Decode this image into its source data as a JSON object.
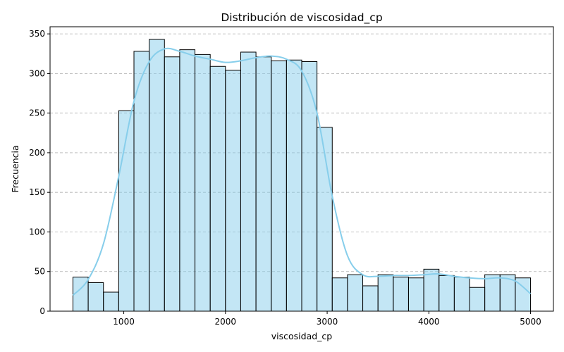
{
  "chart_data": {
    "type": "bar",
    "subtype": "histogram",
    "title": "Distribución de viscosidad_cp",
    "xlabel": "viscosidad_cp",
    "ylabel": "Frecuencia",
    "bin_start": 500,
    "bin_width": 150,
    "counts": [
      43,
      36,
      24,
      253,
      328,
      343,
      321,
      330,
      324,
      309,
      304,
      327,
      321,
      316,
      317,
      315,
      232,
      42,
      46,
      32,
      46,
      43,
      42,
      53,
      45,
      43,
      30,
      46,
      46,
      42
    ],
    "kde": {
      "x": [
        500,
        650,
        800,
        950,
        1100,
        1250,
        1400,
        1550,
        1700,
        1850,
        2000,
        2150,
        2300,
        2450,
        2600,
        2750,
        2900,
        3050,
        3200,
        3350,
        3500,
        3650,
        3800,
        3950,
        4100,
        4250,
        4400,
        4550,
        4700,
        4850,
        5000
      ],
      "y": [
        20,
        40,
        85,
        170,
        265,
        315,
        331,
        328,
        322,
        318,
        314,
        316,
        320,
        322,
        318,
        303,
        250,
        145,
        70,
        46,
        44,
        45,
        45,
        46,
        47,
        44,
        42,
        41,
        42,
        38,
        22
      ]
    },
    "xlim": [
      275,
      5225
    ],
    "ylim": [
      0,
      359
    ],
    "xticks": [
      1000,
      2000,
      3000,
      4000,
      5000
    ],
    "yticks": [
      0,
      50,
      100,
      150,
      200,
      250,
      300,
      350
    ],
    "grid": "y-dashed",
    "colors": {
      "bar_fill": "#87ceeb",
      "bar_edge": "#000000",
      "kde_line": "#87ceeb"
    }
  }
}
